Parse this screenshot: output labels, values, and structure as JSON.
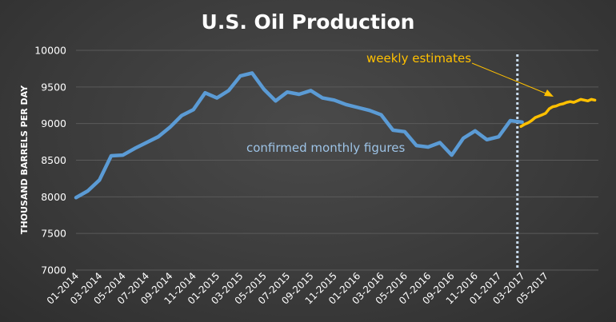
{
  "chart_data": {
    "type": "line",
    "title": "U.S. Oil Production",
    "ylabel": "THOUSAND BARRELS PER DAY",
    "ylim": [
      7000,
      10000
    ],
    "y_ticks": [
      7000,
      7500,
      8000,
      8500,
      9000,
      9500,
      10000
    ],
    "x_ticks": [
      "01-2014",
      "03-2014",
      "05-2014",
      "07-2014",
      "09-2014",
      "11-2014",
      "01-2015",
      "03-2015",
      "05-2015",
      "07-2015",
      "09-2015",
      "11-2015",
      "01-2016",
      "03-2016",
      "05-2016",
      "07-2016",
      "09-2016",
      "11-2016",
      "01-2017",
      "03-2017",
      "05-2017"
    ],
    "grid": true,
    "colors": {
      "monthly": "#5b9bd5",
      "weekly": "#ffc000",
      "divider": "#c9dcef"
    },
    "series": [
      {
        "key": "monthly",
        "month_index": [
          0,
          1,
          2,
          3,
          4,
          5,
          6,
          7,
          8,
          9,
          10,
          11,
          12,
          13,
          14,
          15,
          16,
          17,
          18,
          19,
          20,
          21,
          22,
          23,
          24,
          25,
          26,
          27,
          28,
          29,
          30,
          31,
          32,
          33,
          34,
          35,
          36,
          37,
          38
        ],
        "values": [
          7990,
          8080,
          8230,
          8560,
          8570,
          8660,
          8740,
          8820,
          8950,
          9110,
          9190,
          9420,
          9350,
          9450,
          9650,
          9690,
          9470,
          9310,
          9430,
          9400,
          9450,
          9350,
          9320,
          9260,
          9220,
          9180,
          9120,
          8910,
          8890,
          8700,
          8680,
          8740,
          8570,
          8800,
          8900,
          8780,
          8820,
          9040,
          9020
        ]
      },
      {
        "key": "weekly",
        "month_index": [
          37.9,
          38.2,
          38.5,
          38.8,
          39.1,
          39.4,
          39.7,
          40.0,
          40.3,
          40.6,
          40.9,
          41.2,
          41.5,
          41.8,
          42.1,
          42.4,
          42.7,
          43.0,
          43.3,
          43.6,
          43.9,
          44.2
        ],
        "values": [
          8960,
          8990,
          9010,
          9040,
          9080,
          9100,
          9120,
          9140,
          9200,
          9230,
          9240,
          9260,
          9270,
          9290,
          9300,
          9290,
          9310,
          9330,
          9320,
          9310,
          9330,
          9320
        ]
      }
    ],
    "divider_month_index": 37.6,
    "annotations": {
      "monthly": "confirmed monthly figures",
      "weekly": "weekly estimates"
    }
  }
}
